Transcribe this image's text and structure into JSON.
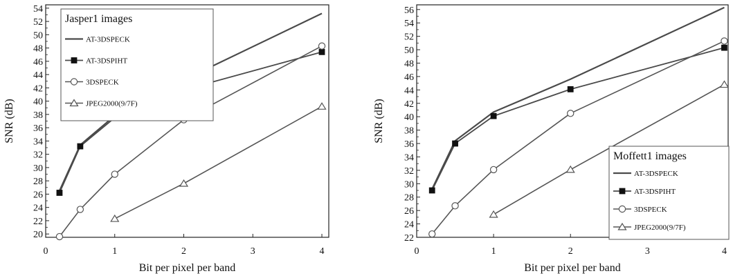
{
  "chart_data": [
    {
      "type": "line",
      "title": "Jasper1 images",
      "xlabel": "Bit per pixel per band",
      "ylabel": "SNR (dB)",
      "xlim": [
        0,
        4.1
      ],
      "ylim": [
        19.5,
        54.5
      ],
      "xticks": [
        0,
        1,
        2,
        3,
        4
      ],
      "yticks": [
        20,
        22,
        24,
        26,
        28,
        30,
        32,
        34,
        36,
        38,
        40,
        42,
        44,
        46,
        48,
        50,
        52,
        54
      ],
      "legend_position": "top-left",
      "series": [
        {
          "name": "AT-3DSPECK",
          "marker": "none",
          "x": [
            0.2,
            0.5,
            1,
            2,
            4
          ],
          "y": [
            26.5,
            33.4,
            37.8,
            43.2,
            53.2
          ]
        },
        {
          "name": "AT-3DSPIHT",
          "marker": "square-filled",
          "x": [
            0.2,
            0.5,
            1,
            2,
            4
          ],
          "y": [
            26.2,
            33.2,
            37.5,
            41.7,
            47.4
          ]
        },
        {
          "name": "3DSPECK",
          "marker": "circle-open",
          "x": [
            0.2,
            0.5,
            1,
            2,
            4
          ],
          "y": [
            19.6,
            23.7,
            29.0,
            37.2,
            48.3
          ]
        },
        {
          "name": "JPEG2000(9/7F)",
          "marker": "triangle-open",
          "x": [
            1,
            2,
            4
          ],
          "y": [
            22.3,
            27.6,
            39.2
          ]
        }
      ]
    },
    {
      "type": "line",
      "title": "Moffett1 images",
      "xlabel": "Bit per pixel per band",
      "ylabel": "SNR (dB)",
      "xlim": [
        0,
        4.05
      ],
      "ylim": [
        22,
        56.7
      ],
      "xticks": [
        0,
        1,
        2,
        3,
        4
      ],
      "yticks": [
        22,
        24,
        26,
        28,
        30,
        32,
        34,
        36,
        38,
        40,
        42,
        44,
        46,
        48,
        50,
        52,
        54,
        56
      ],
      "legend_position": "bottom-right",
      "series": [
        {
          "name": "AT-3DSPECK",
          "marker": "none",
          "x": [
            0.2,
            0.5,
            1,
            2,
            4
          ],
          "y": [
            29.2,
            36.4,
            40.7,
            45.6,
            56.3
          ]
        },
        {
          "name": "AT-3DSPIHT",
          "marker": "square-filled",
          "x": [
            0.2,
            0.5,
            1,
            2,
            4
          ],
          "y": [
            29.0,
            36.0,
            40.1,
            44.1,
            50.3
          ]
        },
        {
          "name": "3DSPECK",
          "marker": "circle-open",
          "x": [
            0.2,
            0.5,
            1,
            2,
            4
          ],
          "y": [
            22.5,
            26.7,
            32.1,
            40.5,
            51.3
          ]
        },
        {
          "name": "JPEG2000(9/7F)",
          "marker": "triangle-open",
          "x": [
            1,
            2,
            4
          ],
          "y": [
            25.4,
            32.1,
            44.8
          ]
        }
      ]
    }
  ]
}
